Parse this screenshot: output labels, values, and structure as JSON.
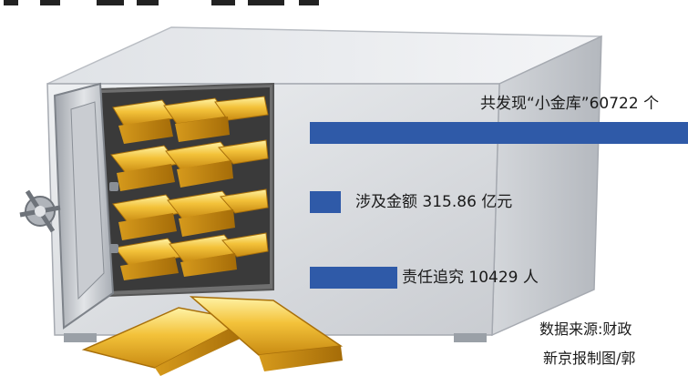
{
  "chart_data": {
    "type": "bar",
    "orientation": "horizontal",
    "title": "",
    "bars": [
      {
        "label": "共发现“小金库”60722 个",
        "value": 60722,
        "unit": "个"
      },
      {
        "label": "涉及金额 315.86 亿元",
        "value": 315.86,
        "unit": "亿元"
      },
      {
        "label": "责任追究 10429 人",
        "value": 10429,
        "unit": "人"
      }
    ],
    "colors": {
      "bar": "#2f5aa8"
    },
    "illustration": [
      "safe-icon",
      "gold-bar-icon"
    ]
  },
  "footer": {
    "source": "数据来源:财政",
    "credit": "新京报制图/郭"
  }
}
